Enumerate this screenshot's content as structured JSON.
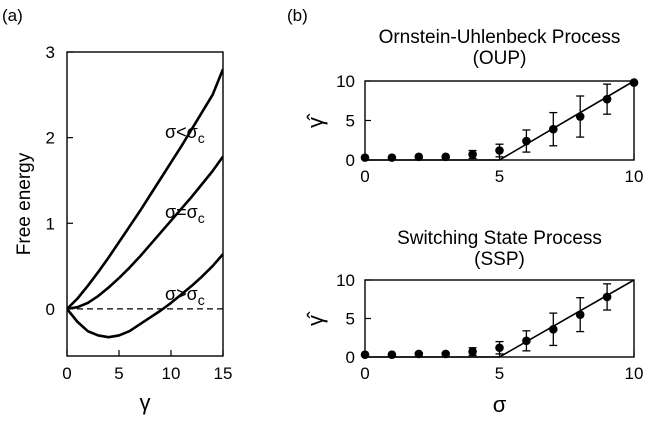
{
  "panel_labels": {
    "a": "(a)",
    "b": "(b)"
  },
  "chart_data": [
    {
      "type": "line",
      "panel": "(a)",
      "xlabel": "γ",
      "ylabel": "Free energy",
      "xlim": [
        0,
        15
      ],
      "ylim": [
        -0.55,
        3
      ],
      "xticks": [
        0,
        5,
        10,
        15
      ],
      "yticks": [
        0,
        1,
        2,
        3
      ],
      "grid": false,
      "legend": "none",
      "reference_line": {
        "y": 0,
        "style": "dashed"
      },
      "series": [
        {
          "name": "σ<σc",
          "label_main": "σ<σ",
          "label_sub": "c",
          "x": [
            0,
            1,
            2,
            3,
            4,
            5,
            6,
            7,
            8,
            9,
            10,
            11,
            12,
            13,
            14,
            15
          ],
          "y": [
            0,
            0.12,
            0.27,
            0.43,
            0.6,
            0.78,
            0.96,
            1.14,
            1.33,
            1.52,
            1.71,
            1.9,
            2.1,
            2.3,
            2.5,
            2.8
          ]
        },
        {
          "name": "σ=σc",
          "label_main": "σ=σ",
          "label_sub": "c",
          "x": [
            0,
            1,
            2,
            3,
            4,
            5,
            6,
            7,
            8,
            9,
            10,
            11,
            12,
            13,
            14,
            15
          ],
          "y": [
            0,
            0.02,
            0.07,
            0.15,
            0.25,
            0.36,
            0.48,
            0.61,
            0.75,
            0.89,
            1.03,
            1.17,
            1.31,
            1.46,
            1.61,
            1.78
          ]
        },
        {
          "name": "σ>σc",
          "label_main": "σ>σ",
          "label_sub": "c",
          "x": [
            0,
            1,
            2,
            3,
            4,
            5,
            6,
            7,
            8,
            9,
            10,
            11,
            12,
            13,
            14,
            15
          ],
          "y": [
            0,
            -0.15,
            -0.26,
            -0.31,
            -0.33,
            -0.31,
            -0.26,
            -0.18,
            -0.1,
            -0.02,
            0.07,
            0.17,
            0.27,
            0.38,
            0.5,
            0.64
          ]
        }
      ]
    },
    {
      "type": "scatter",
      "panel": "(b)",
      "title_lines": [
        "Ornstein-Uhlenbeck Process",
        "(OUP)"
      ],
      "ylabel": "γ̂",
      "xlim": [
        0,
        10
      ],
      "ylim": [
        0,
        10
      ],
      "xticks": [
        0,
        5,
        10
      ],
      "yticks": [
        0,
        5,
        10
      ],
      "grid": false,
      "legend": "none",
      "theory_line": {
        "x": [
          0,
          5,
          10
        ],
        "y": [
          0,
          0,
          10
        ]
      },
      "points": {
        "x": [
          0,
          1,
          2,
          3,
          4,
          5,
          6,
          7,
          8,
          9,
          10
        ],
        "y": [
          0.3,
          0.3,
          0.4,
          0.4,
          0.7,
          1.2,
          2.4,
          3.9,
          5.5,
          7.7,
          9.8
        ],
        "err": [
          0.2,
          0.2,
          0.3,
          0.3,
          0.5,
          0.8,
          1.4,
          2.1,
          2.6,
          1.9,
          0.3
        ]
      }
    },
    {
      "type": "scatter",
      "panel": "(b)",
      "title_lines": [
        "Switching State Process",
        "(SSP)"
      ],
      "xlabel": "σ",
      "ylabel": "γ̂",
      "xlim": [
        0,
        10
      ],
      "ylim": [
        0,
        10
      ],
      "xticks": [
        0,
        5,
        10
      ],
      "yticks": [
        0,
        5,
        10
      ],
      "grid": false,
      "legend": "none",
      "theory_line": {
        "x": [
          0,
          5,
          10
        ],
        "y": [
          0,
          0,
          10
        ]
      },
      "points": {
        "x": [
          0,
          1,
          2,
          3,
          4,
          5,
          6,
          7,
          8,
          9
        ],
        "y": [
          0.3,
          0.3,
          0.4,
          0.4,
          0.7,
          1.2,
          2.1,
          3.6,
          5.5,
          7.8
        ],
        "err": [
          0.2,
          0.2,
          0.3,
          0.3,
          0.5,
          0.8,
          1.3,
          2.1,
          2.2,
          1.7
        ]
      }
    }
  ]
}
